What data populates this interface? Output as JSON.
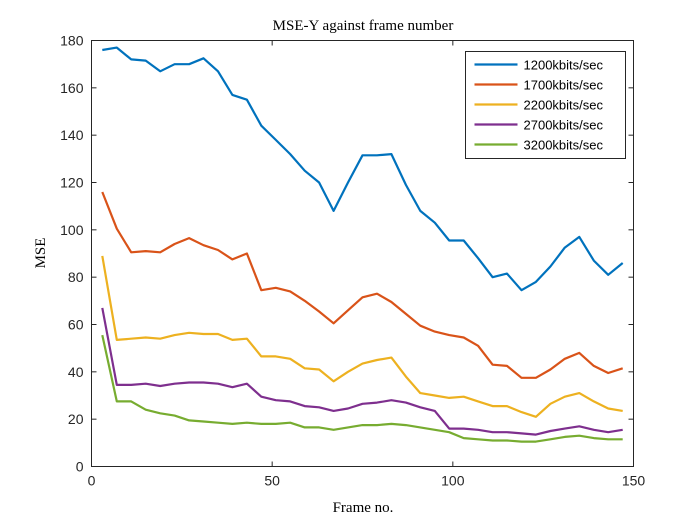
{
  "chart_data": {
    "type": "line",
    "title": "MSE-Y against frame number",
    "xlabel": "Frame no.",
    "ylabel": "MSE",
    "xlim": [
      0,
      150
    ],
    "ylim": [
      0,
      180
    ],
    "xticks": [
      0,
      50,
      100,
      150
    ],
    "yticks": [
      0,
      20,
      40,
      60,
      80,
      100,
      120,
      140,
      160,
      180
    ],
    "grid": false,
    "legend_position": "top-right",
    "x": [
      3,
      7,
      11,
      15,
      19,
      23,
      27,
      31,
      35,
      39,
      43,
      47,
      51,
      55,
      59,
      63,
      67,
      71,
      75,
      79,
      83,
      87,
      91,
      95,
      99,
      103,
      107,
      111,
      115,
      119,
      123,
      127,
      131,
      135,
      139,
      143,
      147
    ],
    "series": [
      {
        "name": "1200kbits/sec",
        "color": "#0072BD",
        "values": [
          176,
          177,
          172,
          171.5,
          167,
          170,
          170,
          172.5,
          167,
          157,
          155,
          144,
          138,
          132,
          125,
          120,
          108,
          120,
          131.5,
          131.5,
          132,
          119,
          108,
          103,
          95.5,
          95.5,
          88,
          80,
          81.5,
          74.5,
          78,
          84.5,
          92.5,
          97,
          87,
          81,
          86
        ]
      },
      {
        "name": "1700kbits/sec",
        "color": "#D95319",
        "values": [
          116,
          100.5,
          90.5,
          91,
          90.5,
          94,
          96.5,
          93.5,
          91.5,
          87.5,
          90,
          74.5,
          75.5,
          74,
          70,
          65.5,
          60.5,
          66,
          71.5,
          73,
          69.5,
          64.5,
          59.5,
          57,
          55.5,
          54.5,
          51,
          43,
          42.5,
          37.5,
          37.5,
          41,
          45.5,
          48,
          42.5,
          39.5,
          41.5
        ]
      },
      {
        "name": "2200kbits/sec",
        "color": "#EDB120",
        "values": [
          89,
          53.5,
          54,
          54.5,
          54,
          55.5,
          56.5,
          56,
          56,
          53.5,
          54,
          46.5,
          46.5,
          45.5,
          41.5,
          41,
          36,
          40,
          43.5,
          45,
          46,
          38,
          31,
          30,
          29,
          29.5,
          27.5,
          25.5,
          25.5,
          23,
          21,
          26.5,
          29.5,
          31,
          27.5,
          24.5,
          23.5
        ]
      },
      {
        "name": "2700kbits/sec",
        "color": "#7E2F8E",
        "values": [
          67,
          34.5,
          34.5,
          35,
          34,
          35,
          35.5,
          35.5,
          35,
          33.5,
          35,
          29.5,
          28,
          27.5,
          25.5,
          25,
          23.5,
          24.5,
          26.5,
          27,
          28,
          27,
          25,
          23.5,
          16,
          16,
          15.5,
          14.5,
          14.5,
          14,
          13.5,
          15,
          16,
          17,
          15.5,
          14.5,
          15.5
        ]
      },
      {
        "name": "3200kbits/sec",
        "color": "#77AC30",
        "values": [
          55.5,
          27.5,
          27.5,
          24,
          22.5,
          21.5,
          19.5,
          19,
          18.5,
          18,
          18.5,
          18,
          18,
          18.5,
          16.5,
          16.5,
          15.5,
          16.5,
          17.5,
          17.5,
          18,
          17.5,
          16.5,
          15.5,
          14.5,
          12,
          11.5,
          11,
          11,
          10.5,
          10.5,
          11.5,
          12.5,
          13,
          12,
          11.5,
          11.5
        ]
      }
    ]
  }
}
